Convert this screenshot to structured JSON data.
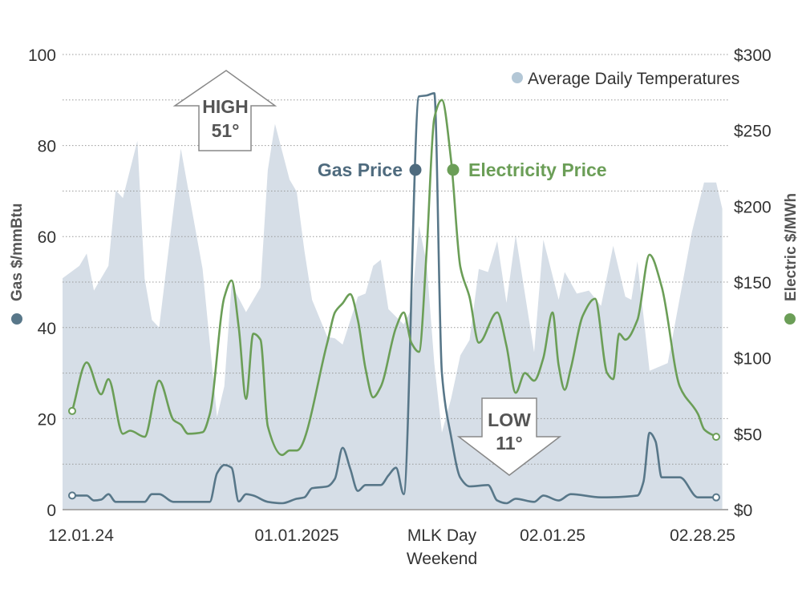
{
  "chart_data": {
    "type": "line",
    "title": "",
    "left_axis": {
      "label": "Gas $/mmBtu",
      "ylim": [
        0,
        100
      ],
      "ticks": [
        "0",
        "20",
        "40",
        "60",
        "80",
        "100"
      ],
      "tick_values": [
        0,
        20,
        40,
        60,
        80,
        100
      ]
    },
    "right_axis": {
      "label": "Electric $/MWh",
      "ylim": [
        0,
        300
      ],
      "ticks": [
        "$0",
        "$50",
        "$100",
        "$150",
        "$200",
        "$250",
        "$300"
      ],
      "tick_values": [
        0,
        50,
        100,
        150,
        200,
        250,
        300
      ]
    },
    "temperature_scale": [
      1,
      60
    ],
    "grid": "horizontal dotted, every 10 gas units",
    "x_ticks": [
      {
        "lines": [
          "12.01.24"
        ],
        "date": "2024-12-01"
      },
      {
        "lines": [
          "01.01.2025"
        ],
        "date": "2025-01-01"
      },
      {
        "lines": [
          "MLK Day",
          "Weekend"
        ],
        "date": "2025-01-20"
      },
      {
        "lines": [
          "02.01.25"
        ],
        "date": "2025-02-01"
      },
      {
        "lines": [
          "02.28.25"
        ],
        "date": "2025-02-28"
      }
    ],
    "legend": {
      "label": "Average Daily Temperatures",
      "placement": "top-right"
    },
    "annotations": {
      "high": {
        "line1": "HIGH",
        "line2": "51°",
        "date": "2024-12-29",
        "value": 51
      },
      "low": {
        "line1": "LOW",
        "line2": "11°",
        "date": "2025-01-20",
        "value": 11
      }
    },
    "series": [
      {
        "name": "Average Daily Temperatures",
        "type": "area",
        "axis": "temperature",
        "color": "#d6dee7",
        "points": [
          [
            "2024-12-01",
            31
          ],
          [
            "2024-12-02",
            32.6
          ],
          [
            "2024-12-03",
            34.2
          ],
          [
            "2024-12-04",
            29.4
          ],
          [
            "2024-12-06",
            32.6
          ],
          [
            "2024-12-07",
            42.4
          ],
          [
            "2024-12-08",
            41.4
          ],
          [
            "2024-12-10",
            48.8
          ],
          [
            "2024-12-11",
            31
          ],
          [
            "2024-12-12",
            25.6
          ],
          [
            "2024-12-13",
            24.6
          ],
          [
            "2024-12-16",
            47.8
          ],
          [
            "2024-12-19",
            32.2
          ],
          [
            "2024-12-21",
            13
          ],
          [
            "2024-12-22",
            17
          ],
          [
            "2024-12-23",
            30.2
          ],
          [
            "2024-12-25",
            26.6
          ],
          [
            "2024-12-27",
            29.8
          ],
          [
            "2024-12-28",
            45
          ],
          [
            "2024-12-29",
            51
          ],
          [
            "2024-12-31",
            43.8
          ],
          [
            "2025-01-01",
            42.2
          ],
          [
            "2025-01-02",
            34.6
          ],
          [
            "2025-01-03",
            28.2
          ],
          [
            "2025-01-05",
            23.4
          ],
          [
            "2025-01-06",
            23.2
          ],
          [
            "2025-01-07",
            22.4
          ],
          [
            "2025-01-09",
            28.6
          ],
          [
            "2025-01-10",
            29
          ],
          [
            "2025-01-11",
            32.6
          ],
          [
            "2025-01-12",
            33.4
          ],
          [
            "2025-01-13",
            27
          ],
          [
            "2025-01-15",
            25
          ],
          [
            "2025-01-16",
            27
          ],
          [
            "2025-01-17",
            37.8
          ],
          [
            "2025-01-18",
            33
          ],
          [
            "2025-01-19",
            20
          ],
          [
            "2025-01-20",
            11
          ],
          [
            "2025-01-21",
            15.4
          ],
          [
            "2025-01-22",
            21
          ],
          [
            "2025-01-23",
            23
          ],
          [
            "2025-01-24",
            32.2
          ],
          [
            "2025-01-25",
            31.8
          ],
          [
            "2025-01-26",
            35.8
          ],
          [
            "2025-01-27",
            27.8
          ],
          [
            "2025-01-28",
            36.6
          ],
          [
            "2025-01-30",
            21.4
          ],
          [
            "2025-01-31",
            36
          ],
          [
            "2025-02-02",
            28.2
          ],
          [
            "2025-02-03",
            31.8
          ],
          [
            "2025-02-05",
            29
          ],
          [
            "2025-02-07",
            29.4
          ],
          [
            "2025-02-09",
            27.4
          ],
          [
            "2025-02-11",
            35.2
          ],
          [
            "2025-02-13",
            28.6
          ],
          [
            "2025-02-14",
            28.2
          ],
          [
            "2025-02-15",
            33.2
          ],
          [
            "2025-02-17",
            19
          ],
          [
            "2025-02-20",
            20
          ],
          [
            "2025-02-24",
            37
          ],
          [
            "2025-02-26",
            43.4
          ],
          [
            "2025-02-28",
            43.4
          ],
          [
            "2025-03-01",
            40
          ]
        ]
      },
      {
        "name": "Gas Price",
        "type": "line",
        "axis": "left",
        "color": "#587789",
        "points": [
          [
            "2024-12-01",
            3.1
          ],
          [
            "2024-12-03",
            3.1
          ],
          [
            "2024-12-04",
            2
          ],
          [
            "2024-12-05",
            2.2
          ],
          [
            "2024-12-06",
            3.4
          ],
          [
            "2024-12-07",
            1.7
          ],
          [
            "2024-12-11",
            1.7
          ],
          [
            "2024-12-12",
            3.4
          ],
          [
            "2024-12-13",
            3.4
          ],
          [
            "2024-12-15",
            1.7
          ],
          [
            "2024-12-20",
            1.7
          ],
          [
            "2024-12-21",
            8
          ],
          [
            "2024-12-22",
            9.8
          ],
          [
            "2024-12-23",
            9.2
          ],
          [
            "2024-12-24",
            1.8
          ],
          [
            "2024-12-25",
            3.4
          ],
          [
            "2024-12-26",
            3.1
          ],
          [
            "2024-12-28",
            1.7
          ],
          [
            "2024-12-30",
            1.4
          ],
          [
            "2025-01-01",
            2.4
          ],
          [
            "2025-01-02",
            2.7
          ],
          [
            "2025-01-03",
            4.7
          ],
          [
            "2025-01-05",
            5.1
          ],
          [
            "2025-01-06",
            6.8
          ],
          [
            "2025-01-07",
            13.6
          ],
          [
            "2025-01-08",
            9
          ],
          [
            "2025-01-09",
            4.1
          ],
          [
            "2025-01-10",
            5.4
          ],
          [
            "2025-01-12",
            5.4
          ],
          [
            "2025-01-13",
            7.5
          ],
          [
            "2025-01-14",
            9.2
          ],
          [
            "2025-01-15",
            3.4
          ],
          [
            "2025-01-17",
            90.8
          ],
          [
            "2025-01-18",
            91
          ],
          [
            "2025-01-19",
            91.5
          ],
          [
            "2025-01-20",
            30
          ],
          [
            "2025-01-21",
            16
          ],
          [
            "2025-01-22",
            7
          ],
          [
            "2025-01-23",
            5.1
          ],
          [
            "2025-01-25",
            5.4
          ],
          [
            "2025-01-26",
            2
          ],
          [
            "2025-01-27",
            1.4
          ],
          [
            "2025-01-28",
            2.4
          ],
          [
            "2025-01-30",
            1.7
          ],
          [
            "2025-01-31",
            3.1
          ],
          [
            "2025-02-02",
            2
          ],
          [
            "2025-02-04",
            3.4
          ],
          [
            "2025-02-09",
            2.7
          ],
          [
            "2025-02-15",
            3.1
          ],
          [
            "2025-02-16",
            6.1
          ],
          [
            "2025-02-17",
            16.9
          ],
          [
            "2025-02-18",
            15
          ],
          [
            "2025-02-19",
            7.1
          ],
          [
            "2025-02-22",
            7.1
          ],
          [
            "2025-02-25",
            2.7
          ],
          [
            "2025-02-28",
            2.7
          ]
        ]
      },
      {
        "name": "Electricity Price",
        "type": "line",
        "axis": "right",
        "color": "#6b9e57",
        "points": [
          [
            "2024-12-01",
            65
          ],
          [
            "2024-12-03",
            97
          ],
          [
            "2024-12-05",
            76
          ],
          [
            "2024-12-06",
            86
          ],
          [
            "2024-12-08",
            50
          ],
          [
            "2024-12-09",
            52
          ],
          [
            "2024-12-11",
            48
          ],
          [
            "2024-12-13",
            85
          ],
          [
            "2024-12-15",
            59
          ],
          [
            "2024-12-16",
            56
          ],
          [
            "2024-12-17",
            50
          ],
          [
            "2024-12-19",
            51
          ],
          [
            "2024-12-20",
            63
          ],
          [
            "2024-12-22",
            140
          ],
          [
            "2024-12-23",
            151
          ],
          [
            "2024-12-24",
            120
          ],
          [
            "2024-12-25",
            73
          ],
          [
            "2024-12-26",
            116
          ],
          [
            "2024-12-27",
            112
          ],
          [
            "2024-12-28",
            55
          ],
          [
            "2024-12-30",
            36
          ],
          [
            "2024-12-31",
            39
          ],
          [
            "2025-01-01",
            39
          ],
          [
            "2025-01-05",
            110
          ],
          [
            "2025-01-06",
            130
          ],
          [
            "2025-01-07",
            136
          ],
          [
            "2025-01-08",
            142
          ],
          [
            "2025-01-09",
            125
          ],
          [
            "2025-01-10",
            93
          ],
          [
            "2025-01-11",
            74
          ],
          [
            "2025-01-12",
            81
          ],
          [
            "2025-01-14",
            120
          ],
          [
            "2025-01-15",
            130
          ],
          [
            "2025-01-16",
            110
          ],
          [
            "2025-01-17",
            104
          ],
          [
            "2025-01-18",
            170
          ],
          [
            "2025-01-19",
            258
          ],
          [
            "2025-01-20",
            270
          ],
          [
            "2025-01-21",
            230
          ],
          [
            "2025-01-22",
            160
          ],
          [
            "2025-01-23",
            140
          ],
          [
            "2025-01-24",
            110
          ],
          [
            "2025-01-26",
            130
          ],
          [
            "2025-01-27",
            108
          ],
          [
            "2025-01-28",
            77
          ],
          [
            "2025-01-29",
            90
          ],
          [
            "2025-01-30",
            85
          ],
          [
            "2025-01-31",
            100
          ],
          [
            "2025-02-01",
            130
          ],
          [
            "2025-02-02",
            95
          ],
          [
            "2025-02-03",
            79
          ],
          [
            "2025-02-04",
            93
          ],
          [
            "2025-02-06",
            128
          ],
          [
            "2025-02-08",
            139
          ],
          [
            "2025-02-10",
            90
          ],
          [
            "2025-02-11",
            86
          ],
          [
            "2025-02-12",
            116
          ],
          [
            "2025-02-13",
            112
          ],
          [
            "2025-02-15",
            125
          ],
          [
            "2025-02-17",
            168
          ],
          [
            "2025-02-19",
            147
          ],
          [
            "2025-02-22",
            81
          ],
          [
            "2025-02-25",
            63
          ],
          [
            "2025-02-26",
            53
          ],
          [
            "2025-02-28",
            48
          ]
        ]
      }
    ],
    "colors": {
      "gas": "#587789",
      "electric": "#6b9e57",
      "temperature": "#d6dee7",
      "legend_dot": "#b3c7d6"
    }
  },
  "labels": {
    "gas_callout": "Gas Price",
    "electric_callout": "Electricity Price"
  }
}
